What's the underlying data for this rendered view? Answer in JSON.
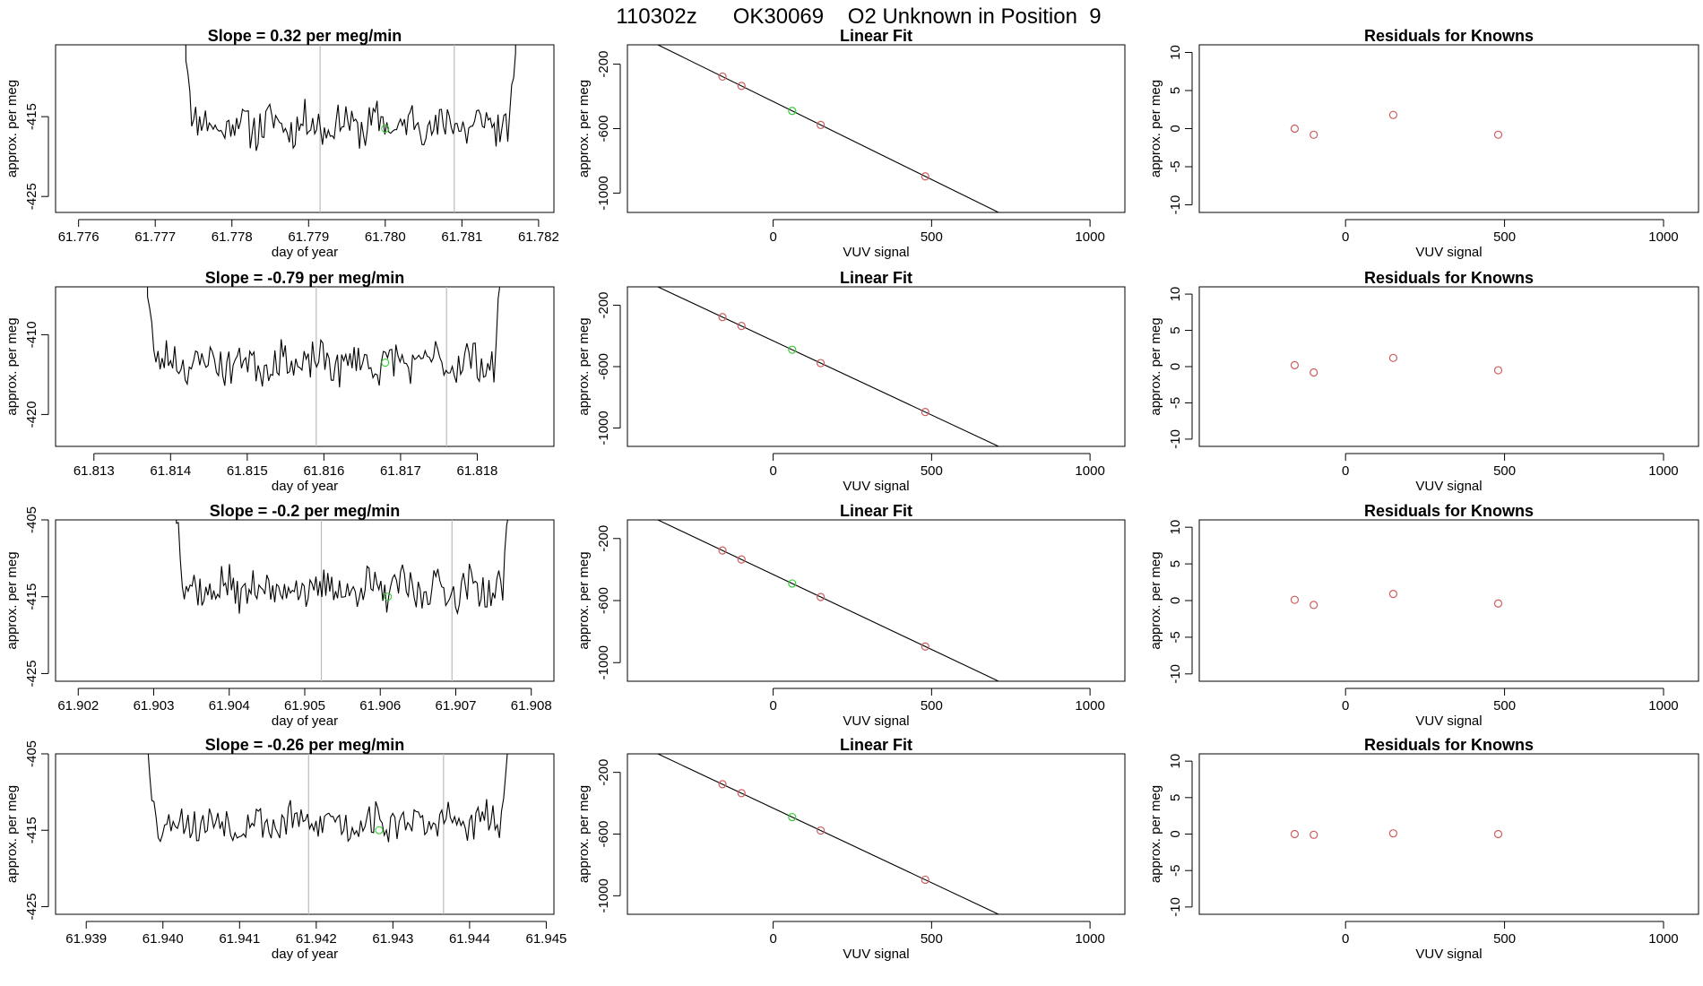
{
  "figure": {
    "title": "110302z      OK30069    O2 Unknown in Position  9",
    "colors": {
      "axis": "#000000",
      "series": "#000000",
      "vline": "#bbbbbb",
      "known": "#cd5c5c",
      "unknown": "#33cc33"
    }
  },
  "chart_data": [
    {
      "type": "line",
      "name": "time-series-row-1",
      "title": "Slope =  0.32  per meg/min",
      "xlabel": "day of year",
      "ylabel": "approx. per meg",
      "xlim": [
        61.7757,
        61.7822
      ],
      "ylim": [
        -427,
        -406
      ],
      "xticks": [
        61.776,
        61.777,
        61.778,
        61.779,
        61.78,
        61.781,
        61.782
      ],
      "xtick_labels": [
        "61.776",
        "61.777",
        "61.778",
        "61.779",
        "61.780",
        "61.781",
        "61.782"
      ],
      "yticks": [
        -425,
        -415
      ],
      "ytick_labels": [
        "-425",
        "-415"
      ],
      "start": 61.7774,
      "end": 61.7817,
      "mean": -416,
      "amp": 2.4,
      "seed": 11,
      "vlines": [
        61.77915,
        61.7809
      ],
      "unknown_point": {
        "x": 61.78,
        "y": -416.5
      }
    },
    {
      "type": "scatter",
      "name": "linear-fit-row-1",
      "title": "Linear Fit",
      "xlabel": "VUV signal",
      "ylabel": "approx. per meg",
      "xlim": [
        -460,
        1110
      ],
      "ylim": [
        -1120,
        -80
      ],
      "xticks": [
        0,
        500,
        1000
      ],
      "xtick_labels": [
        "0",
        "500",
        "1000"
      ],
      "yticks": [
        -200,
        -600,
        -1000
      ],
      "ytick_labels": [
        "-200",
        "-600",
        "-1000"
      ],
      "fit_line": {
        "slope": -0.967,
        "intercept": -432,
        "x_from": -440,
        "x_to": 1100
      },
      "knowns": [
        {
          "x": -160,
          "y": -277
        },
        {
          "x": -100,
          "y": -335
        },
        {
          "x": 150,
          "y": -577
        },
        {
          "x": 480,
          "y": -896
        }
      ],
      "unknown": [
        {
          "x": 60,
          "y": -490
        }
      ]
    },
    {
      "type": "scatter",
      "name": "residuals-row-1",
      "title": "Residuals for Knowns",
      "xlabel": "VUV signal",
      "ylabel": "approx. per meg",
      "xlim": [
        -460,
        1110
      ],
      "ylim": [
        -11,
        11
      ],
      "xticks": [
        0,
        500,
        1000
      ],
      "xtick_labels": [
        "0",
        "500",
        "1000"
      ],
      "yticks": [
        -10,
        -5,
        0,
        5,
        10
      ],
      "ytick_labels": [
        "-10",
        "-5",
        "0",
        "5",
        "10"
      ],
      "knowns": [
        {
          "x": -160,
          "y": 0
        },
        {
          "x": -100,
          "y": -0.8
        },
        {
          "x": 150,
          "y": 1.8
        },
        {
          "x": 480,
          "y": -0.8
        }
      ]
    },
    {
      "type": "line",
      "name": "time-series-row-2",
      "title": "Slope =  -0.79  per meg/min",
      "xlabel": "day of year",
      "ylabel": "approx. per meg",
      "xlim": [
        61.8125,
        61.819
      ],
      "ylim": [
        -424,
        -404
      ],
      "xticks": [
        61.813,
        61.814,
        61.815,
        61.816,
        61.817,
        61.818
      ],
      "xtick_labels": [
        "61.813",
        "61.814",
        "61.815",
        "61.816",
        "61.817",
        "61.818"
      ],
      "yticks": [
        -420,
        -410
      ],
      "ytick_labels": [
        "-420",
        "-410"
      ],
      "start": 61.8137,
      "end": 61.8183,
      "mean": -413.5,
      "amp": 2.2,
      "seed": 23,
      "vlines": [
        61.8159,
        61.8176
      ],
      "unknown_point": {
        "x": 61.8168,
        "y": -413.5
      }
    },
    {
      "type": "scatter",
      "name": "linear-fit-row-2",
      "title": "Linear Fit",
      "xlabel": "VUV signal",
      "ylabel": "approx. per meg",
      "xlim": [
        -460,
        1110
      ],
      "ylim": [
        -1120,
        -80
      ],
      "xticks": [
        0,
        500,
        1000
      ],
      "xtick_labels": [
        "0",
        "500",
        "1000"
      ],
      "yticks": [
        -200,
        -600,
        -1000
      ],
      "ytick_labels": [
        "-200",
        "-600",
        "-1000"
      ],
      "fit_line": {
        "slope": -0.967,
        "intercept": -432,
        "x_from": -440,
        "x_to": 1100
      },
      "knowns": [
        {
          "x": -160,
          "y": -277
        },
        {
          "x": -100,
          "y": -335
        },
        {
          "x": 150,
          "y": -577
        },
        {
          "x": 480,
          "y": -896
        }
      ],
      "unknown": [
        {
          "x": 60,
          "y": -490
        }
      ]
    },
    {
      "type": "scatter",
      "name": "residuals-row-2",
      "title": "Residuals for Knowns",
      "xlabel": "VUV signal",
      "ylabel": "approx. per meg",
      "xlim": [
        -460,
        1110
      ],
      "ylim": [
        -11,
        11
      ],
      "xticks": [
        0,
        500,
        1000
      ],
      "xtick_labels": [
        "0",
        "500",
        "1000"
      ],
      "yticks": [
        -10,
        -5,
        0,
        5,
        10
      ],
      "ytick_labels": [
        "-10",
        "-5",
        "0",
        "5",
        "10"
      ],
      "knowns": [
        {
          "x": -160,
          "y": 0.2
        },
        {
          "x": -100,
          "y": -0.8
        },
        {
          "x": 150,
          "y": 1.2
        },
        {
          "x": 480,
          "y": -0.5
        }
      ]
    },
    {
      "type": "line",
      "name": "time-series-row-3",
      "title": "Slope =  -0.2  per meg/min",
      "xlabel": "day of year",
      "ylabel": "approx. per meg",
      "xlim": [
        61.9017,
        61.9083
      ],
      "ylim": [
        -426,
        -405
      ],
      "xticks": [
        61.902,
        61.903,
        61.904,
        61.905,
        61.906,
        61.907,
        61.908
      ],
      "xtick_labels": [
        "61.902",
        "61.903",
        "61.904",
        "61.905",
        "61.906",
        "61.907",
        "61.908"
      ],
      "yticks": [
        -425,
        -415,
        -405
      ],
      "ytick_labels": [
        "-425",
        "-415",
        "-405"
      ],
      "start": 61.9033,
      "end": 61.9077,
      "mean": -414,
      "amp": 2.4,
      "seed": 37,
      "vlines": [
        61.90522,
        61.90695
      ],
      "unknown_point": {
        "x": 61.9061,
        "y": -415
      }
    },
    {
      "type": "scatter",
      "name": "linear-fit-row-3",
      "title": "Linear Fit",
      "xlabel": "VUV signal",
      "ylabel": "approx. per meg",
      "xlim": [
        -460,
        1110
      ],
      "ylim": [
        -1120,
        -80
      ],
      "xticks": [
        0,
        500,
        1000
      ],
      "xtick_labels": [
        "0",
        "500",
        "1000"
      ],
      "yticks": [
        -200,
        -600,
        -1000
      ],
      "ytick_labels": [
        "-200",
        "-600",
        "-1000"
      ],
      "fit_line": {
        "slope": -0.967,
        "intercept": -432,
        "x_from": -440,
        "x_to": 1100
      },
      "knowns": [
        {
          "x": -160,
          "y": -277
        },
        {
          "x": -100,
          "y": -335
        },
        {
          "x": 150,
          "y": -577
        },
        {
          "x": 480,
          "y": -896
        }
      ],
      "unknown": [
        {
          "x": 60,
          "y": -490
        }
      ]
    },
    {
      "type": "scatter",
      "name": "residuals-row-3",
      "title": "Residuals for Knowns",
      "xlabel": "VUV signal",
      "ylabel": "approx. per meg",
      "xlim": [
        -460,
        1110
      ],
      "ylim": [
        -11,
        11
      ],
      "xticks": [
        0,
        500,
        1000
      ],
      "xtick_labels": [
        "0",
        "500",
        "1000"
      ],
      "yticks": [
        -10,
        -5,
        0,
        5,
        10
      ],
      "ytick_labels": [
        "-10",
        "-5",
        "0",
        "5",
        "10"
      ],
      "knowns": [
        {
          "x": -160,
          "y": 0.1
        },
        {
          "x": -100,
          "y": -0.6
        },
        {
          "x": 150,
          "y": 0.9
        },
        {
          "x": 480,
          "y": -0.4
        }
      ]
    },
    {
      "type": "line",
      "name": "time-series-row-4",
      "title": "Slope =  -0.26  per meg/min",
      "xlabel": "day of year",
      "ylabel": "approx. per meg",
      "xlim": [
        61.9386,
        61.9451
      ],
      "ylim": [
        -426,
        -405
      ],
      "xticks": [
        61.939,
        61.94,
        61.941,
        61.942,
        61.943,
        61.944,
        61.945
      ],
      "xtick_labels": [
        "61.939",
        "61.940",
        "61.941",
        "61.942",
        "61.943",
        "61.944",
        "61.945"
      ],
      "yticks": [
        -425,
        -415,
        -405
      ],
      "ytick_labels": [
        "-425",
        "-415",
        "-405"
      ],
      "start": 61.9398,
      "end": 61.9445,
      "mean": -414,
      "amp": 2.2,
      "seed": 53,
      "vlines": [
        61.9419,
        61.94366
      ],
      "unknown_point": {
        "x": 61.94282,
        "y": -415
      }
    },
    {
      "type": "scatter",
      "name": "linear-fit-row-4",
      "title": "Linear Fit",
      "xlabel": "VUV signal",
      "ylabel": "approx. per meg",
      "xlim": [
        -460,
        1110
      ],
      "ylim": [
        -1120,
        -80
      ],
      "xticks": [
        0,
        500,
        1000
      ],
      "xtick_labels": [
        "0",
        "500",
        "1000"
      ],
      "yticks": [
        -200,
        -600,
        -1000
      ],
      "ytick_labels": [
        "-200",
        "-600",
        "-1000"
      ],
      "fit_line": {
        "slope": -0.967,
        "intercept": -432,
        "x_from": -440,
        "x_to": 1100
      },
      "knowns": [
        {
          "x": -160,
          "y": -277
        },
        {
          "x": -100,
          "y": -335
        },
        {
          "x": 150,
          "y": -577
        },
        {
          "x": 480,
          "y": -896
        }
      ],
      "unknown": [
        {
          "x": 60,
          "y": -490
        }
      ]
    },
    {
      "type": "scatter",
      "name": "residuals-row-4",
      "title": "Residuals for Knowns",
      "xlabel": "VUV signal",
      "ylabel": "approx. per meg",
      "xlim": [
        -460,
        1110
      ],
      "ylim": [
        -11,
        11
      ],
      "xticks": [
        0,
        500,
        1000
      ],
      "xtick_labels": [
        "0",
        "500",
        "1000"
      ],
      "yticks": [
        -10,
        -5,
        0,
        5,
        10
      ],
      "ytick_labels": [
        "-10",
        "-5",
        "0",
        "5",
        "10"
      ],
      "knowns": [
        {
          "x": -160,
          "y": 0
        },
        {
          "x": -100,
          "y": -0.1
        },
        {
          "x": 150,
          "y": 0.1
        },
        {
          "x": 480,
          "y": 0
        }
      ]
    }
  ]
}
